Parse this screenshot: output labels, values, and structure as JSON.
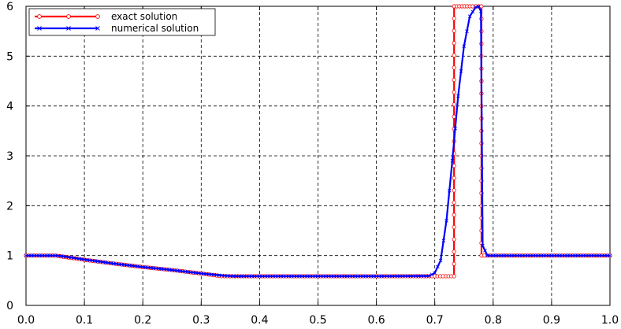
{
  "chart_data": {
    "type": "line",
    "title": "",
    "xlabel": "",
    "ylabel": "",
    "xlim": [
      0.0,
      1.0
    ],
    "ylim": [
      0,
      6
    ],
    "grid": true,
    "legend_position": "top-left",
    "x_ticks": [
      "0.0",
      "0.1",
      "0.2",
      "0.3",
      "0.4",
      "0.5",
      "0.6",
      "0.7",
      "0.8",
      "0.9",
      "1.0"
    ],
    "y_ticks": [
      "0",
      "1",
      "2",
      "3",
      "4",
      "5",
      "6"
    ],
    "series": [
      {
        "name": "exact solution",
        "color": "#ff0000",
        "marker": "circle",
        "x": [
          0.0,
          0.05,
          0.1,
          0.15,
          0.2,
          0.25,
          0.3,
          0.335,
          0.4,
          0.5,
          0.6,
          0.7,
          0.733,
          0.7331,
          0.76,
          0.7799,
          0.78,
          0.8,
          0.9,
          1.0
        ],
        "y": [
          1.0,
          1.0,
          0.915,
          0.84,
          0.77,
          0.71,
          0.64,
          0.585,
          0.585,
          0.585,
          0.585,
          0.585,
          0.585,
          6.0,
          6.0,
          6.0,
          1.0,
          1.0,
          1.0,
          1.0
        ]
      },
      {
        "name": "numerical solution",
        "color": "#0000ff",
        "marker": "x",
        "x": [
          0.0,
          0.05,
          0.06,
          0.1,
          0.15,
          0.2,
          0.25,
          0.3,
          0.34,
          0.36,
          0.4,
          0.5,
          0.6,
          0.69,
          0.7,
          0.71,
          0.72,
          0.73,
          0.74,
          0.75,
          0.76,
          0.77,
          0.775,
          0.779,
          0.782,
          0.79,
          0.8,
          0.9,
          1.0
        ],
        "y": [
          1.0,
          1.0,
          0.99,
          0.92,
          0.84,
          0.77,
          0.71,
          0.64,
          0.595,
          0.585,
          0.585,
          0.585,
          0.585,
          0.59,
          0.65,
          0.9,
          1.7,
          2.9,
          4.2,
          5.2,
          5.8,
          5.98,
          6.0,
          5.9,
          1.2,
          1.0,
          1.0,
          1.0,
          1.0
        ]
      }
    ]
  }
}
